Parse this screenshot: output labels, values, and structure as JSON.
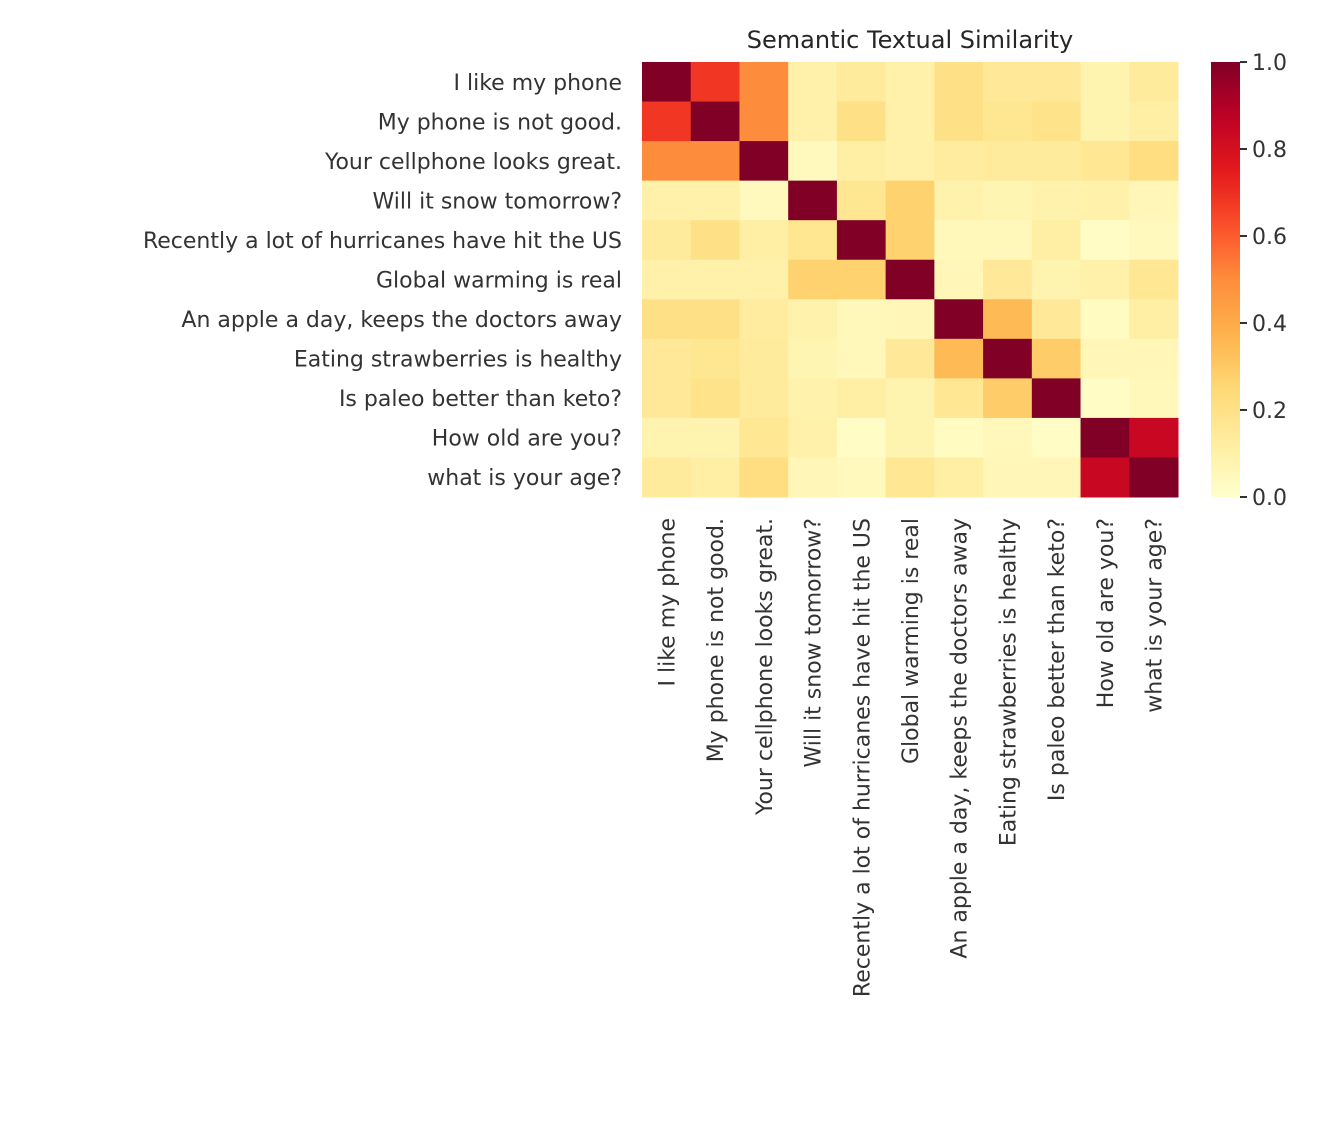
{
  "chart_data": {
    "type": "heatmap",
    "title": "Semantic Textual Similarity",
    "labels": [
      "I like my phone",
      "My phone is not good.",
      "Your cellphone looks great.",
      "Will it snow tomorrow?",
      "Recently a lot of hurricanes have hit the US",
      "Global warming is real",
      "An apple a day, keeps the doctors away",
      "Eating strawberries is healthy",
      "Is paleo better than keto?",
      "How old are you?",
      "what is your age?"
    ],
    "values": [
      [
        1,
        0.68,
        0.5,
        0.1,
        0.14,
        0.1,
        0.2,
        0.15,
        0.15,
        0.08,
        0.14
      ],
      [
        0.68,
        1,
        0.5,
        0.1,
        0.2,
        0.1,
        0.2,
        0.17,
        0.19,
        0.08,
        0.11
      ],
      [
        0.5,
        0.5,
        1,
        0.04,
        0.11,
        0.1,
        0.13,
        0.14,
        0.14,
        0.16,
        0.22
      ],
      [
        0.1,
        0.1,
        0.04,
        1,
        0.17,
        0.27,
        0.09,
        0.07,
        0.09,
        0.1,
        0.06
      ],
      [
        0.14,
        0.2,
        0.11,
        0.17,
        1,
        0.27,
        0.05,
        0.05,
        0.11,
        0.02,
        0.04
      ],
      [
        0.1,
        0.1,
        0.1,
        0.27,
        0.27,
        1,
        0.06,
        0.15,
        0.08,
        0.1,
        0.16
      ],
      [
        0.2,
        0.2,
        0.13,
        0.09,
        0.05,
        0.06,
        1,
        0.35,
        0.15,
        0.03,
        0.11
      ],
      [
        0.15,
        0.17,
        0.14,
        0.07,
        0.05,
        0.15,
        0.35,
        1,
        0.29,
        0.06,
        0.06
      ],
      [
        0.15,
        0.19,
        0.14,
        0.09,
        0.11,
        0.08,
        0.16,
        0.29,
        1,
        0.02,
        0.05
      ],
      [
        0.08,
        0.08,
        0.16,
        0.1,
        0.02,
        0.08,
        0.03,
        0.05,
        0.02,
        1,
        0.84
      ],
      [
        0.14,
        0.11,
        0.22,
        0.06,
        0.04,
        0.16,
        0.11,
        0.06,
        0.06,
        0.84,
        1
      ]
    ],
    "colormap": "YlOrRd",
    "vmin": 0,
    "vmax": 1,
    "colorbar_ticks": [
      "0.0",
      "0.2",
      "0.4",
      "0.6",
      "0.8",
      "1.0"
    ],
    "grid": false,
    "colorbar_placement": "right"
  }
}
